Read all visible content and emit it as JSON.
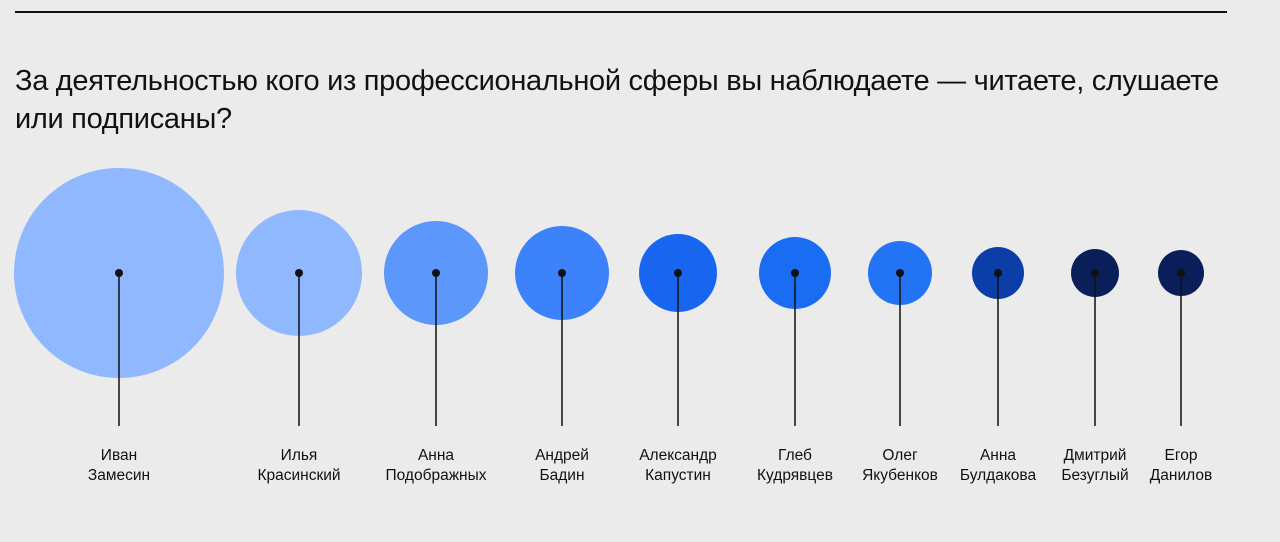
{
  "title": "За деятельностью кого из профессиональной сферы вы наблюдаете — читаете, слушаете или подписаны?",
  "chart_data": {
    "type": "bubble",
    "title": "За деятельностью кого из профессиональной сферы вы наблюдаете — читаете, слушаете или подписаны?",
    "people": [
      {
        "first": "Иван",
        "last": "Замесин",
        "size": 105,
        "color": "#8fb8ff"
      },
      {
        "first": "Илья",
        "last": "Красинский",
        "size": 63,
        "color": "#8fb8ff"
      },
      {
        "first": "Анна",
        "last": "Подображных",
        "size": 52,
        "color": "#5c97fb"
      },
      {
        "first": "Андрей",
        "last": "Бадин",
        "size": 47,
        "color": "#3b82fb"
      },
      {
        "first": "Александр",
        "last": "Капустин",
        "size": 39,
        "color": "#1866f0"
      },
      {
        "first": "Глеб",
        "last": "Кудрявцев",
        "size": 36,
        "color": "#1a6cf2"
      },
      {
        "first": "Олег",
        "last": "Якубенков",
        "size": 32,
        "color": "#2373f5"
      },
      {
        "first": "Анна",
        "last": "Булдакова",
        "size": 26,
        "color": "#0b3ea8"
      },
      {
        "first": "Дмитрий",
        "last": "Безуглый",
        "size": 24,
        "color": "#0a1f5a"
      },
      {
        "first": "Егор",
        "last": "Данилов",
        "size": 23,
        "color": "#0a1f5a"
      }
    ]
  }
}
